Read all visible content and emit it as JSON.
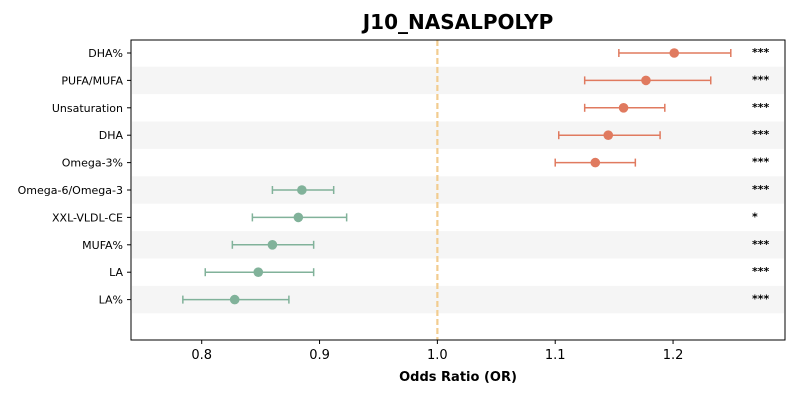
{
  "chart_data": {
    "type": "forest",
    "title": "J10_NASALPOLYP",
    "xlabel": "Odds Ratio (OR)",
    "xlim": [
      0.74,
      1.295
    ],
    "xticks": [
      "0.8",
      "0.9",
      "1.0",
      "1.1",
      "1.2"
    ],
    "reference_line": 1.0,
    "grid": false,
    "row_banding": true,
    "colors": {
      "positive": "#e07a5f",
      "negative": "#81b29a",
      "reference": "#f2cc8f",
      "band": "#f5f5f5"
    },
    "rows": [
      {
        "label": "DHA%",
        "or": 1.201,
        "lo": 1.154,
        "hi": 1.249,
        "sig": "***",
        "direction": "positive"
      },
      {
        "label": "PUFA/MUFA",
        "or": 1.177,
        "lo": 1.125,
        "hi": 1.232,
        "sig": "***",
        "direction": "positive"
      },
      {
        "label": "Unsaturation",
        "or": 1.158,
        "lo": 1.125,
        "hi": 1.193,
        "sig": "***",
        "direction": "positive"
      },
      {
        "label": "DHA",
        "or": 1.145,
        "lo": 1.103,
        "hi": 1.189,
        "sig": "***",
        "direction": "positive"
      },
      {
        "label": "Omega-3%",
        "or": 1.134,
        "lo": 1.1,
        "hi": 1.168,
        "sig": "***",
        "direction": "positive"
      },
      {
        "label": "Omega-6/Omega-3",
        "or": 0.885,
        "lo": 0.86,
        "hi": 0.912,
        "sig": "***",
        "direction": "negative"
      },
      {
        "label": "XXL-VLDL-CE",
        "or": 0.882,
        "lo": 0.843,
        "hi": 0.923,
        "sig": "*",
        "direction": "negative"
      },
      {
        "label": "MUFA%",
        "or": 0.86,
        "lo": 0.826,
        "hi": 0.895,
        "sig": "***",
        "direction": "negative"
      },
      {
        "label": "LA",
        "or": 0.848,
        "lo": 0.803,
        "hi": 0.895,
        "sig": "***",
        "direction": "negative"
      },
      {
        "label": "LA%",
        "or": 0.828,
        "lo": 0.784,
        "hi": 0.874,
        "sig": "***",
        "direction": "negative"
      }
    ]
  }
}
